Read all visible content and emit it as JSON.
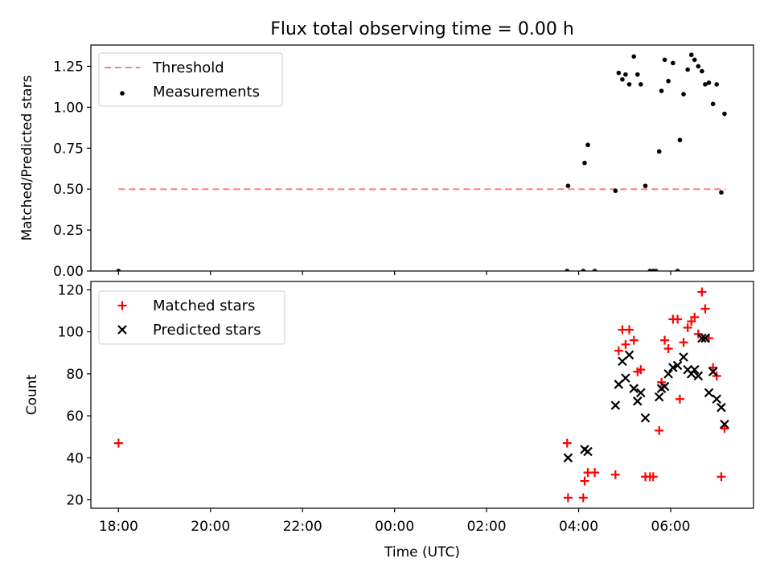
{
  "chart_data": [
    {
      "type": "scatter",
      "title": "Flux total observing time = 0.00 h",
      "xlabel": "",
      "ylabel": "Matched/Predicted stars",
      "ylim": [
        0,
        1.38
      ],
      "yticks": [
        "0.00",
        "0.25",
        "0.50",
        "0.75",
        "1.00",
        "1.25"
      ],
      "grid": false,
      "legend_position": "top-left",
      "threshold": {
        "name": "Threshold",
        "value": 0.5,
        "x_range": [
          -6.0,
          7.2
        ],
        "color": "#ff7f7f"
      },
      "series": [
        {
          "name": "Measurements",
          "marker": "dot",
          "color": "#000000",
          "points": [
            [
              -6.0,
              0.0
            ],
            [
              3.75,
              0.0
            ],
            [
              3.77,
              0.52
            ],
            [
              4.1,
              0.0
            ],
            [
              4.13,
              0.66
            ],
            [
              4.2,
              0.77
            ],
            [
              4.35,
              0.0
            ],
            [
              4.8,
              0.49
            ],
            [
              4.87,
              1.21
            ],
            [
              4.95,
              1.17
            ],
            [
              5.02,
              1.2
            ],
            [
              5.1,
              1.14
            ],
            [
              5.2,
              1.31
            ],
            [
              5.28,
              1.2
            ],
            [
              5.35,
              1.14
            ],
            [
              5.45,
              0.52
            ],
            [
              5.55,
              0.0
            ],
            [
              5.62,
              0.0
            ],
            [
              5.68,
              0.0
            ],
            [
              5.75,
              0.73
            ],
            [
              5.8,
              1.1
            ],
            [
              5.87,
              1.29
            ],
            [
              5.95,
              1.16
            ],
            [
              6.05,
              1.27
            ],
            [
              6.15,
              0.0
            ],
            [
              6.2,
              0.8
            ],
            [
              6.28,
              1.08
            ],
            [
              6.37,
              1.23
            ],
            [
              6.45,
              1.32
            ],
            [
              6.52,
              1.29
            ],
            [
              6.6,
              1.25
            ],
            [
              6.68,
              1.22
            ],
            [
              6.75,
              1.14
            ],
            [
              6.83,
              1.15
            ],
            [
              6.92,
              1.02
            ],
            [
              7.0,
              1.14
            ],
            [
              7.1,
              0.48
            ],
            [
              7.17,
              0.96
            ]
          ]
        }
      ]
    },
    {
      "type": "scatter",
      "title": "",
      "xlabel": "Time (UTC)",
      "ylabel": "Count",
      "ylim": [
        16,
        124
      ],
      "yticks": [
        "20",
        "40",
        "60",
        "80",
        "100",
        "120"
      ],
      "xticks": [
        "18:00",
        "20:00",
        "22:00",
        "00:00",
        "02:00",
        "04:00",
        "06:00"
      ],
      "x_range_hours_rel_midnight": [
        -6.6,
        7.8
      ],
      "grid": false,
      "legend_position": "top-left",
      "series": [
        {
          "name": "Matched stars",
          "marker": "plus",
          "color": "#ff0000",
          "points": [
            [
              -6.0,
              47
            ],
            [
              3.75,
              47
            ],
            [
              3.77,
              21
            ],
            [
              4.1,
              21
            ],
            [
              4.13,
              29
            ],
            [
              4.2,
              33
            ],
            [
              4.35,
              33
            ],
            [
              4.8,
              32
            ],
            [
              4.87,
              91
            ],
            [
              4.95,
              101
            ],
            [
              5.02,
              94
            ],
            [
              5.1,
              101
            ],
            [
              5.2,
              96
            ],
            [
              5.28,
              81
            ],
            [
              5.35,
              82
            ],
            [
              5.45,
              31
            ],
            [
              5.55,
              31
            ],
            [
              5.62,
              31
            ],
            [
              5.75,
              53
            ],
            [
              5.8,
              76
            ],
            [
              5.87,
              96
            ],
            [
              5.95,
              92
            ],
            [
              6.05,
              106
            ],
            [
              6.15,
              106
            ],
            [
              6.2,
              68
            ],
            [
              6.28,
              95
            ],
            [
              6.37,
              102
            ],
            [
              6.45,
              105
            ],
            [
              6.52,
              107
            ],
            [
              6.6,
              99
            ],
            [
              6.68,
              119
            ],
            [
              6.75,
              111
            ],
            [
              6.83,
              97
            ],
            [
              6.92,
              83
            ],
            [
              7.0,
              79
            ],
            [
              7.1,
              31
            ],
            [
              7.17,
              54
            ]
          ]
        },
        {
          "name": "Predicted stars",
          "marker": "cross",
          "color": "#000000",
          "points": [
            [
              3.77,
              40
            ],
            [
              4.13,
              44
            ],
            [
              4.2,
              43
            ],
            [
              4.8,
              65
            ],
            [
              4.87,
              75
            ],
            [
              4.95,
              86
            ],
            [
              5.02,
              78
            ],
            [
              5.1,
              89
            ],
            [
              5.2,
              73
            ],
            [
              5.28,
              67
            ],
            [
              5.35,
              71
            ],
            [
              5.45,
              59
            ],
            [
              5.75,
              69
            ],
            [
              5.8,
              73
            ],
            [
              5.87,
              74
            ],
            [
              5.95,
              80
            ],
            [
              6.05,
              83
            ],
            [
              6.15,
              84
            ],
            [
              6.28,
              88
            ],
            [
              6.37,
              82
            ],
            [
              6.45,
              80
            ],
            [
              6.52,
              82
            ],
            [
              6.6,
              79
            ],
            [
              6.68,
              97
            ],
            [
              6.75,
              97
            ],
            [
              6.83,
              71
            ],
            [
              6.92,
              81
            ],
            [
              7.0,
              68
            ],
            [
              7.1,
              64
            ],
            [
              7.17,
              56
            ]
          ]
        }
      ]
    }
  ]
}
